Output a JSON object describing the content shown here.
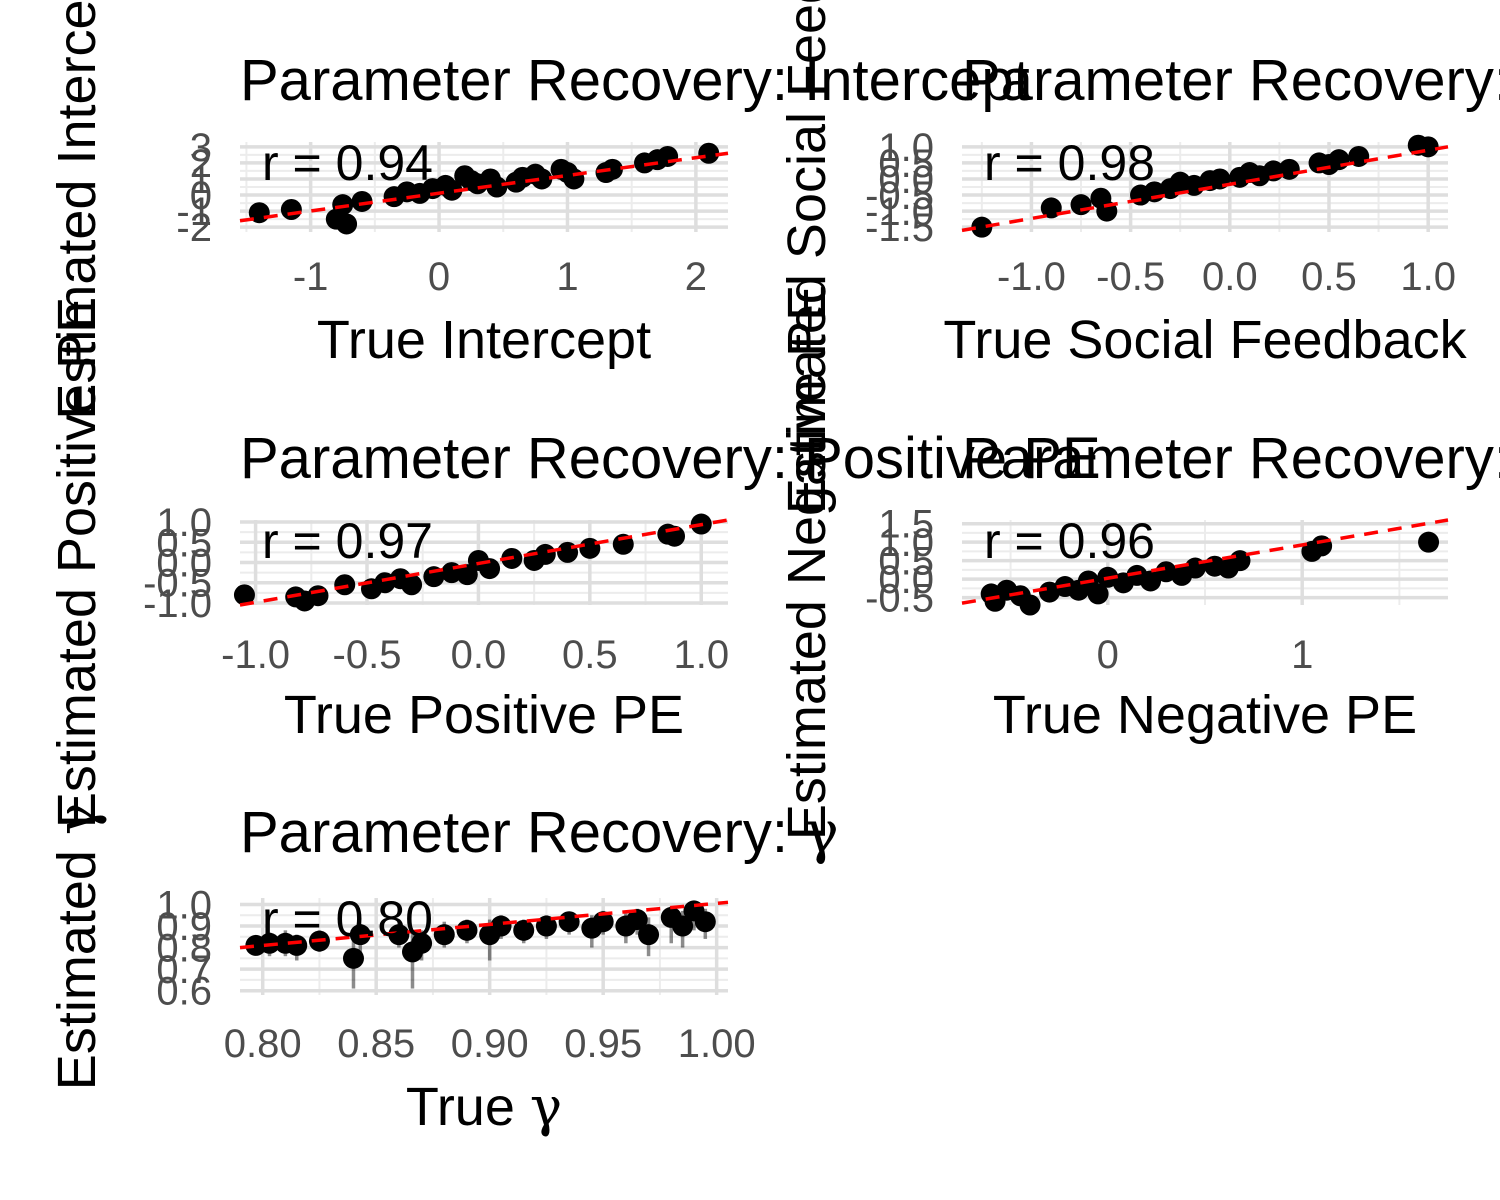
{
  "chart_data": [
    {
      "type": "scatter",
      "title": "Parameter Recovery: Intercept",
      "xlabel": "True Intercept",
      "ylabel": "Estimated Intercept",
      "xlim": [
        -1.55,
        2.25
      ],
      "ylim": [
        -2.3,
        3.3
      ],
      "xticks": [
        -1,
        0,
        1,
        2
      ],
      "yticks": [
        -2,
        -1,
        0,
        1,
        2,
        3
      ],
      "annotation": "r = 0.94",
      "grid": true,
      "reference_line": {
        "color": "#ff0000",
        "style": "dashed",
        "x": [
          -1.55,
          2.25
        ],
        "y": [
          -1.6,
          2.6
        ]
      },
      "points": [
        {
          "x": -1.4,
          "y": -1.1
        },
        {
          "x": -1.15,
          "y": -0.9
        },
        {
          "x": -0.8,
          "y": -1.5
        },
        {
          "x": -0.75,
          "y": -0.6
        },
        {
          "x": -0.72,
          "y": -1.8
        },
        {
          "x": -0.6,
          "y": -0.4
        },
        {
          "x": -0.35,
          "y": -0.1
        },
        {
          "x": -0.25,
          "y": 0.2
        },
        {
          "x": -0.15,
          "y": 0.1
        },
        {
          "x": -0.05,
          "y": 0.4
        },
        {
          "x": 0.05,
          "y": 0.6
        },
        {
          "x": 0.1,
          "y": 0.3
        },
        {
          "x": 0.2,
          "y": 1.2
        },
        {
          "x": 0.25,
          "y": 0.9
        },
        {
          "x": 0.3,
          "y": 0.7
        },
        {
          "x": 0.4,
          "y": 1.0
        },
        {
          "x": 0.45,
          "y": 0.5
        },
        {
          "x": 0.6,
          "y": 0.8
        },
        {
          "x": 0.65,
          "y": 1.1
        },
        {
          "x": 0.75,
          "y": 1.3
        },
        {
          "x": 0.8,
          "y": 1.0
        },
        {
          "x": 0.95,
          "y": 1.6
        },
        {
          "x": 1.0,
          "y": 1.4
        },
        {
          "x": 1.05,
          "y": 1.0
        },
        {
          "x": 1.3,
          "y": 1.4
        },
        {
          "x": 1.35,
          "y": 1.6
        },
        {
          "x": 1.6,
          "y": 2.0
        },
        {
          "x": 1.7,
          "y": 2.2
        },
        {
          "x": 1.78,
          "y": 2.4
        },
        {
          "x": 2.1,
          "y": 2.6
        }
      ]
    },
    {
      "type": "scatter",
      "title": "Parameter Recovery: Social Feedback",
      "xlabel": "True Social Feedback",
      "ylabel": "Estimated Social Feedback",
      "xlim": [
        -1.35,
        1.1
      ],
      "ylim": [
        -1.65,
        1.15
      ],
      "xticks": [
        -1.0,
        -0.5,
        0.0,
        0.5,
        1.0
      ],
      "yticks": [
        -1.5,
        -1.0,
        -0.5,
        0.0,
        0.5,
        1.0
      ],
      "annotation": "r = 0.98",
      "grid": true,
      "reference_line": {
        "color": "#ff0000",
        "style": "dashed",
        "x": [
          -1.35,
          1.1
        ],
        "y": [
          -1.6,
          1.0
        ]
      },
      "points": [
        {
          "x": -1.25,
          "y": -1.5
        },
        {
          "x": -0.9,
          "y": -0.9
        },
        {
          "x": -0.75,
          "y": -0.8
        },
        {
          "x": -0.65,
          "y": -0.6
        },
        {
          "x": -0.62,
          "y": -1.0
        },
        {
          "x": -0.45,
          "y": -0.5
        },
        {
          "x": -0.38,
          "y": -0.4
        },
        {
          "x": -0.3,
          "y": -0.3
        },
        {
          "x": -0.25,
          "y": -0.1
        },
        {
          "x": -0.18,
          "y": -0.2
        },
        {
          "x": -0.1,
          "y": -0.05
        },
        {
          "x": -0.05,
          "y": 0.0
        },
        {
          "x": 0.05,
          "y": 0.05
        },
        {
          "x": 0.1,
          "y": 0.2
        },
        {
          "x": 0.15,
          "y": 0.1
        },
        {
          "x": 0.22,
          "y": 0.25
        },
        {
          "x": 0.3,
          "y": 0.3
        },
        {
          "x": 0.45,
          "y": 0.5
        },
        {
          "x": 0.5,
          "y": 0.45
        },
        {
          "x": 0.55,
          "y": 0.6
        },
        {
          "x": 0.65,
          "y": 0.7
        },
        {
          "x": 0.95,
          "y": 1.05
        },
        {
          "x": 1.0,
          "y": 1.0
        }
      ]
    },
    {
      "type": "scatter",
      "title": "Parameter Recovery: Positive PE",
      "xlabel": "True Positive PE",
      "ylabel": "Estimated Positive PE",
      "xlim": [
        -1.07,
        1.12
      ],
      "ylim": [
        -1.05,
        1.05
      ],
      "xticks": [
        -1.0,
        -0.5,
        0.0,
        0.5,
        1.0
      ],
      "yticks": [
        -1.0,
        -0.5,
        0.0,
        0.5,
        1.0
      ],
      "annotation": "r = 0.97",
      "grid": true,
      "reference_line": {
        "color": "#ff0000",
        "style": "dashed",
        "x": [
          -1.07,
          1.12
        ],
        "y": [
          -1.05,
          1.05
        ]
      },
      "points": [
        {
          "x": -1.05,
          "y": -0.8
        },
        {
          "x": -0.82,
          "y": -0.85
        },
        {
          "x": -0.78,
          "y": -0.95
        },
        {
          "x": -0.72,
          "y": -0.82
        },
        {
          "x": -0.6,
          "y": -0.55
        },
        {
          "x": -0.48,
          "y": -0.65
        },
        {
          "x": -0.42,
          "y": -0.5
        },
        {
          "x": -0.35,
          "y": -0.4
        },
        {
          "x": -0.3,
          "y": -0.55
        },
        {
          "x": -0.2,
          "y": -0.35
        },
        {
          "x": -0.12,
          "y": -0.25
        },
        {
          "x": -0.05,
          "y": -0.3
        },
        {
          "x": 0.0,
          "y": 0.05
        },
        {
          "x": 0.05,
          "y": -0.15
        },
        {
          "x": 0.15,
          "y": 0.1
        },
        {
          "x": 0.25,
          "y": 0.05
        },
        {
          "x": 0.3,
          "y": 0.2
        },
        {
          "x": 0.4,
          "y": 0.25
        },
        {
          "x": 0.5,
          "y": 0.35
        },
        {
          "x": 0.65,
          "y": 0.45
        },
        {
          "x": 0.85,
          "y": 0.7
        },
        {
          "x": 0.88,
          "y": 0.65
        },
        {
          "x": 1.0,
          "y": 0.95
        }
      ]
    },
    {
      "type": "scatter",
      "title": "Parameter Recovery: Negative PE",
      "xlabel": "True Negative PE",
      "ylabel": "Estimated Negative PE",
      "xlim": [
        -0.75,
        1.75
      ],
      "ylim": [
        -0.7,
        1.6
      ],
      "xticks": [
        0,
        1
      ],
      "yticks": [
        -0.5,
        0.0,
        0.5,
        1.0,
        1.5
      ],
      "annotation": "r = 0.96",
      "grid": true,
      "reference_line": {
        "color": "#ff0000",
        "style": "dashed",
        "x": [
          -0.75,
          1.75
        ],
        "y": [
          -0.65,
          1.6
        ]
      },
      "points": [
        {
          "x": -0.6,
          "y": -0.4
        },
        {
          "x": -0.58,
          "y": -0.6
        },
        {
          "x": -0.52,
          "y": -0.3
        },
        {
          "x": -0.45,
          "y": -0.45
        },
        {
          "x": -0.4,
          "y": -0.7
        },
        {
          "x": -0.3,
          "y": -0.35
        },
        {
          "x": -0.22,
          "y": -0.2
        },
        {
          "x": -0.15,
          "y": -0.3
        },
        {
          "x": -0.1,
          "y": -0.05
        },
        {
          "x": -0.05,
          "y": -0.4
        },
        {
          "x": 0.0,
          "y": 0.05
        },
        {
          "x": 0.08,
          "y": -0.1
        },
        {
          "x": 0.15,
          "y": 0.1
        },
        {
          "x": 0.22,
          "y": -0.05
        },
        {
          "x": 0.3,
          "y": 0.2
        },
        {
          "x": 0.38,
          "y": 0.1
        },
        {
          "x": 0.45,
          "y": 0.3
        },
        {
          "x": 0.55,
          "y": 0.35
        },
        {
          "x": 0.62,
          "y": 0.3
        },
        {
          "x": 0.68,
          "y": 0.5
        },
        {
          "x": 1.05,
          "y": 0.75
        },
        {
          "x": 1.1,
          "y": 0.9
        },
        {
          "x": 1.65,
          "y": 1.0
        }
      ]
    },
    {
      "type": "scatter",
      "title": "Parameter Recovery: γ",
      "xlabel": "True γ",
      "ylabel": "Estimated γ",
      "xlim": [
        0.79,
        1.005
      ],
      "ylim": [
        0.58,
        1.03
      ],
      "xticks": [
        0.8,
        0.85,
        0.9,
        0.95,
        1.0
      ],
      "yticks": [
        0.6,
        0.7,
        0.8,
        0.9,
        1.0
      ],
      "annotation": "r = 0.80",
      "grid": true,
      "error_bars": true,
      "reference_line": {
        "color": "#ff0000",
        "style": "dashed",
        "x": [
          0.79,
          1.005
        ],
        "y": [
          0.8,
          1.01
        ]
      },
      "points": [
        {
          "x": 0.797,
          "y": 0.81,
          "lo": 0.78,
          "hi": 0.84
        },
        {
          "x": 0.803,
          "y": 0.82,
          "lo": 0.76,
          "hi": 0.87
        },
        {
          "x": 0.81,
          "y": 0.82,
          "lo": 0.76,
          "hi": 0.88
        },
        {
          "x": 0.815,
          "y": 0.81,
          "lo": 0.74,
          "hi": 0.86
        },
        {
          "x": 0.825,
          "y": 0.83,
          "lo": 0.78,
          "hi": 0.88
        },
        {
          "x": 0.84,
          "y": 0.75,
          "lo": 0.61,
          "hi": 0.84
        },
        {
          "x": 0.843,
          "y": 0.86,
          "lo": 0.78,
          "hi": 0.91
        },
        {
          "x": 0.86,
          "y": 0.86,
          "lo": 0.8,
          "hi": 0.92
        },
        {
          "x": 0.866,
          "y": 0.78,
          "lo": 0.61,
          "hi": 0.87
        },
        {
          "x": 0.87,
          "y": 0.82,
          "lo": 0.74,
          "hi": 0.88
        },
        {
          "x": 0.88,
          "y": 0.86,
          "lo": 0.8,
          "hi": 0.92
        },
        {
          "x": 0.89,
          "y": 0.88,
          "lo": 0.82,
          "hi": 0.93
        },
        {
          "x": 0.9,
          "y": 0.86,
          "lo": 0.74,
          "hi": 0.93
        },
        {
          "x": 0.905,
          "y": 0.9,
          "lo": 0.84,
          "hi": 0.95
        },
        {
          "x": 0.915,
          "y": 0.88,
          "lo": 0.82,
          "hi": 0.93
        },
        {
          "x": 0.925,
          "y": 0.9,
          "lo": 0.84,
          "hi": 0.95
        },
        {
          "x": 0.935,
          "y": 0.92,
          "lo": 0.86,
          "hi": 0.96
        },
        {
          "x": 0.945,
          "y": 0.89,
          "lo": 0.8,
          "hi": 0.95
        },
        {
          "x": 0.95,
          "y": 0.92,
          "lo": 0.86,
          "hi": 0.97
        },
        {
          "x": 0.96,
          "y": 0.9,
          "lo": 0.82,
          "hi": 0.96
        },
        {
          "x": 0.965,
          "y": 0.93,
          "lo": 0.86,
          "hi": 0.98
        },
        {
          "x": 0.97,
          "y": 0.86,
          "lo": 0.76,
          "hi": 0.94
        },
        {
          "x": 0.98,
          "y": 0.94,
          "lo": 0.82,
          "hi": 0.99
        },
        {
          "x": 0.985,
          "y": 0.9,
          "lo": 0.8,
          "hi": 0.97
        },
        {
          "x": 0.99,
          "y": 0.97,
          "lo": 0.88,
          "hi": 1.0
        },
        {
          "x": 0.995,
          "y": 0.92,
          "lo": 0.84,
          "hi": 0.98
        }
      ]
    }
  ]
}
